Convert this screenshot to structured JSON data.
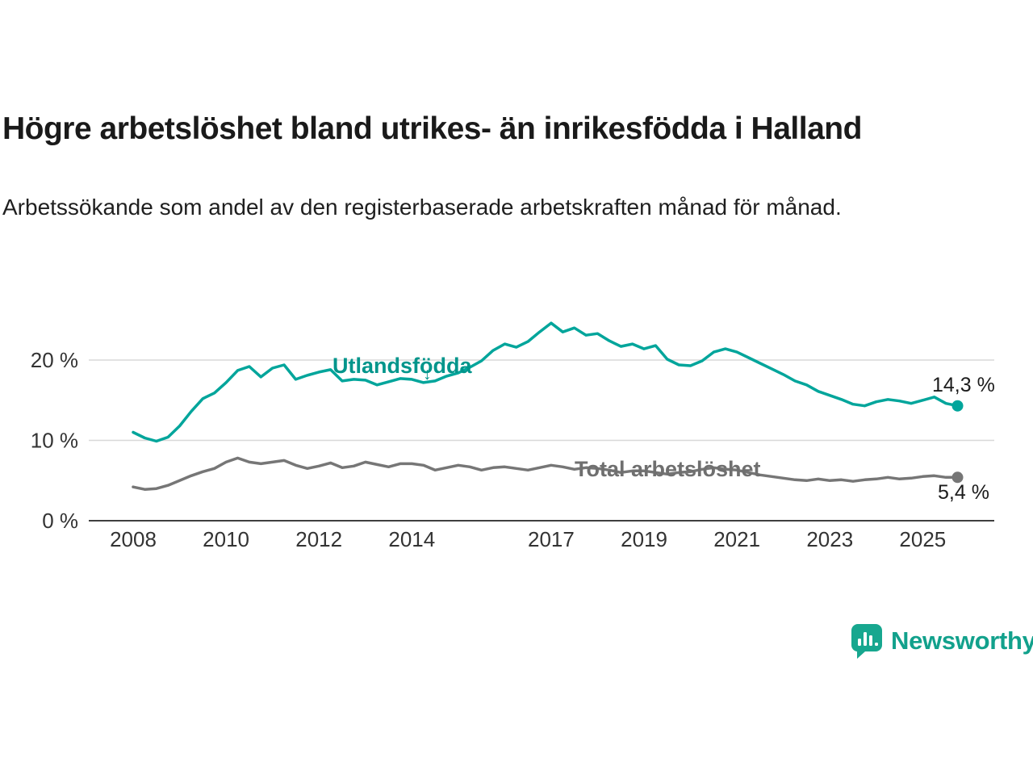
{
  "header": {
    "title": "Högre arbetslöshet bland utrikes- än inrikesfödda i Halland",
    "subtitle": "Arbetssökande som andel av den registerbaserade arbetskraften månad för månad."
  },
  "footer": {
    "brand": "Newsworthy",
    "brand_color": "#12a18c"
  },
  "chart_data": {
    "type": "line",
    "title": "Högre arbetslöshet bland utrikes- än inrikesfödda i Halland",
    "xlabel": "",
    "ylabel": "",
    "x_unit": "decimal_year",
    "xlim": [
      2007.5,
      2026.3
    ],
    "ylim": [
      0,
      26
    ],
    "grid": "horizontal",
    "legend_position": "inline-labels",
    "colors": {
      "grid": "#d8d8d8",
      "axis": "#3f3f3f",
      "tick_text": "#333333"
    },
    "y_ticks": [
      {
        "label": "0 %",
        "value": 0
      },
      {
        "label": "10 %",
        "value": 10
      },
      {
        "label": "20 %",
        "value": 20
      }
    ],
    "x_ticks": [
      {
        "label": "2008",
        "value": 2008
      },
      {
        "label": "2010",
        "value": 2010
      },
      {
        "label": "2012",
        "value": 2012
      },
      {
        "label": "2014",
        "value": 2014
      },
      {
        "label": "2017",
        "value": 2017
      },
      {
        "label": "2019",
        "value": 2019
      },
      {
        "label": "2021",
        "value": 2021
      },
      {
        "label": "2023",
        "value": 2023
      },
      {
        "label": "2025",
        "value": 2025
      }
    ],
    "series": [
      {
        "id": "utlandsfodda",
        "label": "Utlandsfödda",
        "label_arrow": "↓",
        "end_label": "14,3 %",
        "end_value": 14.3,
        "color": "#00a59b",
        "start_year": 2008,
        "interval_years": 0.25,
        "values": [
          11.0,
          10.3,
          9.9,
          10.4,
          11.8,
          13.6,
          15.2,
          15.9,
          17.2,
          18.7,
          19.2,
          17.9,
          19.0,
          19.4,
          17.6,
          18.1,
          18.5,
          18.8,
          17.4,
          17.6,
          17.5,
          16.9,
          17.3,
          17.7,
          17.6,
          17.2,
          17.4,
          18.0,
          18.4,
          19.1,
          19.9,
          21.2,
          22.0,
          21.6,
          22.3,
          23.5,
          24.6,
          23.5,
          24.0,
          23.1,
          23.3,
          22.4,
          21.7,
          22.0,
          21.4,
          21.8,
          20.1,
          19.4,
          19.3,
          19.9,
          21.0,
          21.4,
          21.0,
          20.3,
          19.6,
          18.9,
          18.2,
          17.4,
          16.9,
          16.1,
          15.6,
          15.1,
          14.5,
          14.3,
          14.8,
          15.1,
          14.9,
          14.6,
          15.0,
          15.4,
          14.6,
          14.3
        ]
      },
      {
        "id": "total",
        "label": "Total arbetslöshet",
        "end_label": "5,4 %",
        "end_value": 5.4,
        "color": "#767676",
        "start_year": 2008,
        "interval_years": 0.25,
        "values": [
          4.2,
          3.9,
          4.0,
          4.4,
          5.0,
          5.6,
          6.1,
          6.5,
          7.3,
          7.8,
          7.3,
          7.1,
          7.3,
          7.5,
          6.9,
          6.5,
          6.8,
          7.2,
          6.6,
          6.8,
          7.3,
          7.0,
          6.7,
          7.1,
          7.1,
          6.9,
          6.3,
          6.6,
          6.9,
          6.7,
          6.3,
          6.6,
          6.7,
          6.5,
          6.3,
          6.6,
          6.9,
          6.7,
          6.4,
          6.6,
          6.5,
          6.3,
          6.0,
          6.2,
          6.2,
          6.0,
          5.8,
          6.0,
          6.1,
          6.4,
          6.6,
          6.4,
          6.3,
          6.0,
          5.7,
          5.5,
          5.3,
          5.1,
          5.0,
          5.2,
          5.0,
          5.1,
          4.9,
          5.1,
          5.2,
          5.4,
          5.2,
          5.3,
          5.5,
          5.6,
          5.4,
          5.4
        ]
      }
    ]
  }
}
